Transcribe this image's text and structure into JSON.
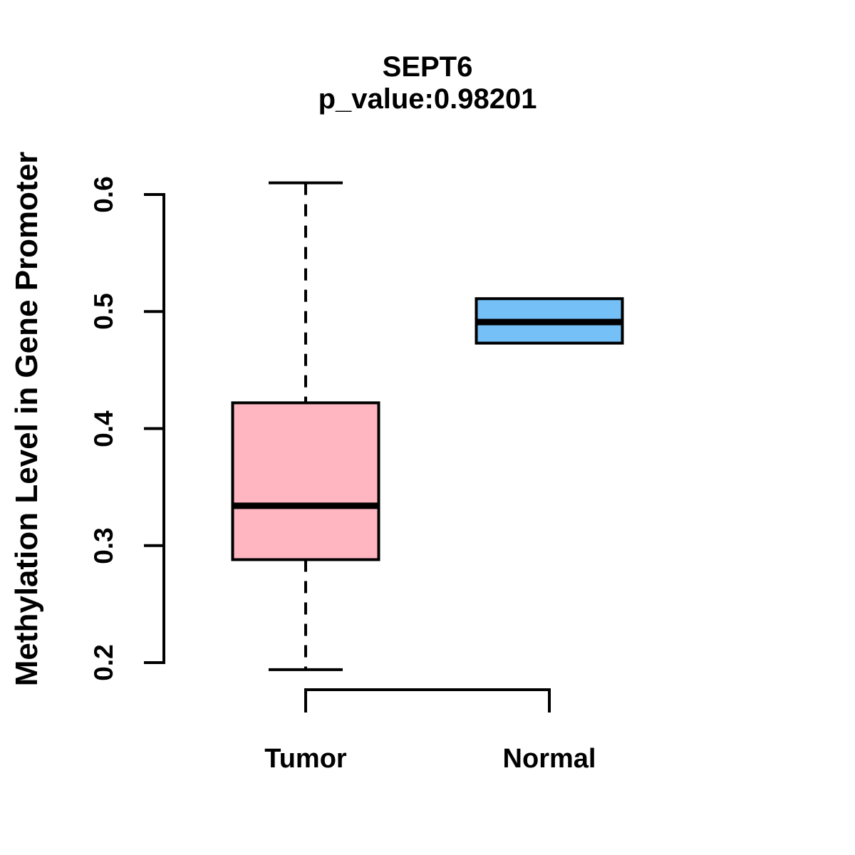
{
  "chart_data": {
    "type": "boxplot",
    "title": "SEPT6",
    "subtitle": "p_value:0.98201",
    "p_value": "0.98201",
    "ylabel": "Methylation Level in Gene Promoter",
    "xlabel": "",
    "categories": [
      "Tumor",
      "Normal"
    ],
    "y_ticks": [
      0.2,
      0.3,
      0.4,
      0.5,
      0.6
    ],
    "y_tick_labels": [
      "0.2",
      "0.3",
      "0.4",
      "0.5",
      "0.6"
    ],
    "ylim": [
      0.19,
      0.61
    ],
    "grid": false,
    "legend": "none",
    "series": [
      {
        "name": "Tumor",
        "color": "#FFB6C1",
        "min": 0.194,
        "q1": 0.288,
        "median": 0.334,
        "q3": 0.422,
        "max": 0.61,
        "whiskers": true,
        "whisker_style": "dashed"
      },
      {
        "name": "Normal",
        "color": "#74C0F7",
        "min": 0.473,
        "q1": 0.473,
        "median": 0.491,
        "q3": 0.511,
        "max": 0.511,
        "whiskers": false,
        "whisker_style": "none"
      }
    ]
  },
  "colors": {
    "background": "#FFFFFF",
    "foreground": "#000000",
    "tumor_box": "#FFB6C1",
    "normal_box": "#74C0F7"
  }
}
